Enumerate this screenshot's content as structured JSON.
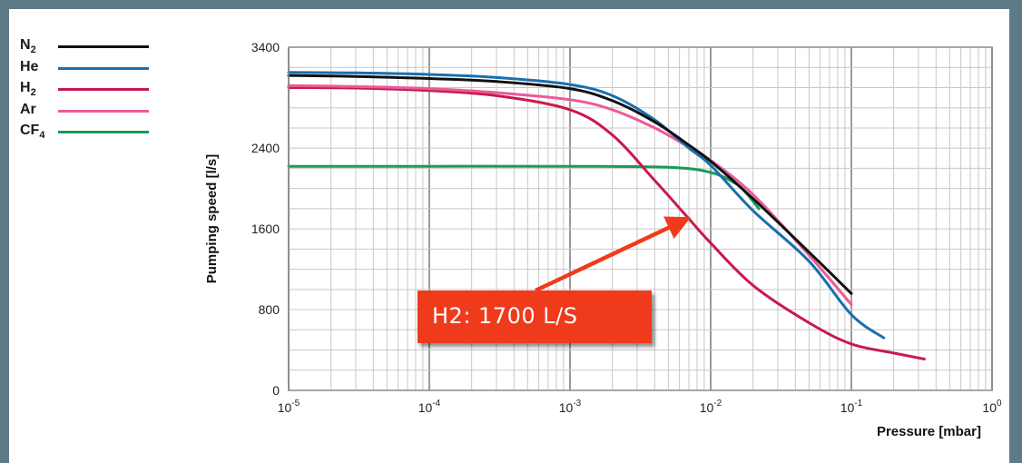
{
  "chart_data": {
    "type": "line",
    "xlabel": "Pressure [mbar]",
    "ylabel": "Pumping speed [l/s]",
    "xscale": "log",
    "xlim": [
      1e-05,
      1
    ],
    "ylim": [
      0,
      3400
    ],
    "xticks": [
      1e-05,
      0.0001,
      0.001,
      0.01,
      0.1,
      1
    ],
    "xtick_labels": [
      {
        "base": "10",
        "exp": "-5"
      },
      {
        "base": "10",
        "exp": "-4"
      },
      {
        "base": "10",
        "exp": "-3"
      },
      {
        "base": "10",
        "exp": "-2"
      },
      {
        "base": "10",
        "exp": "-1"
      },
      {
        "base": "10",
        "exp": "0"
      }
    ],
    "yticks": [
      0,
      800,
      1600,
      2400,
      3400
    ],
    "grid": true,
    "legend_position": "left",
    "series": [
      {
        "name": "N2",
        "label_main": "N",
        "label_sub": "2",
        "color": "#111111",
        "x": [
          1e-05,
          3e-05,
          0.0001,
          0.0003,
          0.001,
          0.002,
          0.004,
          0.007,
          0.01,
          0.02,
          0.05,
          0.1
        ],
        "y": [
          3120,
          3110,
          3090,
          3060,
          2990,
          2870,
          2660,
          2430,
          2270,
          1900,
          1370,
          960
        ]
      },
      {
        "name": "He",
        "label_main": "He",
        "label_sub": "",
        "color": "#1a6fae",
        "x": [
          1e-05,
          3e-05,
          0.0001,
          0.0003,
          0.001,
          0.002,
          0.004,
          0.007,
          0.01,
          0.02,
          0.05,
          0.1,
          0.17
        ],
        "y": [
          3150,
          3145,
          3130,
          3100,
          3030,
          2920,
          2680,
          2400,
          2230,
          1780,
          1280,
          750,
          520
        ]
      },
      {
        "name": "H2",
        "label_main": "H",
        "label_sub": "2",
        "color": "#c81a4e",
        "x": [
          1e-05,
          3e-05,
          0.0001,
          0.0003,
          0.001,
          0.002,
          0.004,
          0.007,
          0.01,
          0.02,
          0.05,
          0.1,
          0.2,
          0.33
        ],
        "y": [
          3000,
          2995,
          2970,
          2920,
          2780,
          2530,
          2080,
          1700,
          1460,
          1040,
          670,
          460,
          370,
          310
        ]
      },
      {
        "name": "Ar",
        "label_main": "Ar",
        "label_sub": "",
        "color": "#ec5a9a",
        "x": [
          1e-05,
          3e-05,
          0.0001,
          0.0003,
          0.001,
          0.002,
          0.004,
          0.007,
          0.01,
          0.02,
          0.05,
          0.1
        ],
        "y": [
          3020,
          3010,
          2990,
          2950,
          2880,
          2780,
          2600,
          2410,
          2280,
          1940,
          1340,
          850
        ]
      },
      {
        "name": "CF4",
        "label_main": "CF",
        "label_sub": "4",
        "color": "#1a9a5a",
        "x": [
          1e-05,
          0.0001,
          0.001,
          0.005,
          0.01,
          0.015,
          0.018,
          0.022
        ],
        "y": [
          2220,
          2220,
          2220,
          2210,
          2160,
          2050,
          1950,
          1800
        ]
      }
    ],
    "annotations": [
      {
        "text": "H2: 1700 L/S",
        "points_to": {
          "x": 0.007,
          "y": 1700
        },
        "color": "#f03a1c"
      }
    ]
  }
}
